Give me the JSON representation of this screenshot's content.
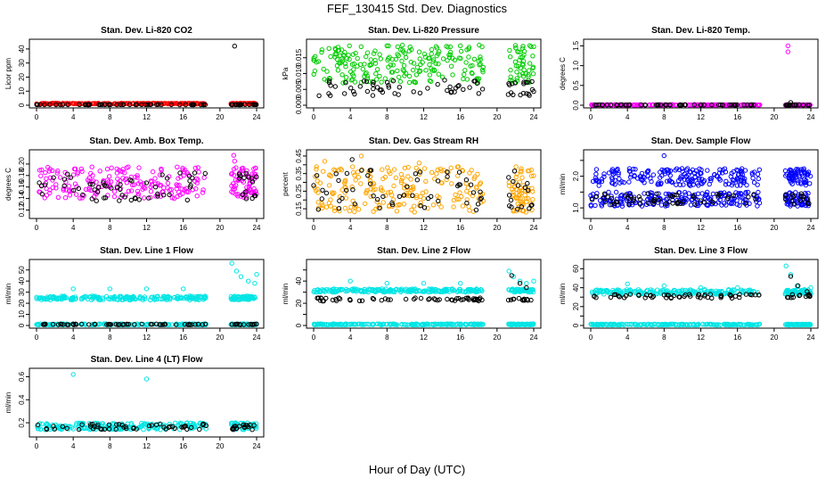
{
  "page": {
    "title": "FEF_130415  Std. Dev. Diagnostics",
    "xlabel": "Hour of Day (UTC)"
  },
  "colors": {
    "red": "#ff0000",
    "green": "#00cc00",
    "magenta": "#ff00ff",
    "orange": "#ffa500",
    "blue": "#0000ff",
    "cyan": "#00e5e5",
    "black": "#000000"
  },
  "chart_data": [
    {
      "type": "scatter",
      "title": "Stan. Dev. Li-820 CO2",
      "ylabel": "Licor ppm",
      "xlim": [
        0,
        24
      ],
      "ylim": [
        0,
        45
      ],
      "xticks": [
        "0",
        "4",
        "8",
        "12",
        "16",
        "20",
        "24"
      ],
      "yticks": [
        0,
        10,
        20,
        30,
        40
      ],
      "ytick_labels": [
        "0",
        "10",
        "20",
        "30",
        "40"
      ],
      "gaps": [
        [
          18.5,
          21.2
        ]
      ],
      "series": [
        {
          "name": "primary",
          "color": "#ff0000",
          "base": 0.9,
          "spread": 0.5,
          "seed": 11,
          "spikes": [
            [
              21.3,
              0.4
            ]
          ]
        },
        {
          "name": "secondary",
          "color": "#000000",
          "base": 0.3,
          "spread": 0.2,
          "seed": 12,
          "spikes": [
            [
              21.6,
              42
            ]
          ]
        }
      ]
    },
    {
      "type": "scatter",
      "title": "Stan. Dev. Li-820 Pressure",
      "ylabel": "kPa",
      "xlim": [
        0,
        24
      ],
      "ylim": [
        0,
        0.02
      ],
      "xticks": [
        "0",
        "4",
        "8",
        "12",
        "16",
        "20",
        "24"
      ],
      "yticks": [
        0,
        0.005,
        0.01,
        0.015
      ],
      "ytick_labels": [
        "0.000",
        "0.005",
        "0.010",
        "0.015"
      ],
      "gaps": [
        [
          18.5,
          21.2
        ]
      ],
      "series": [
        {
          "name": "primary",
          "color": "#00cc00",
          "base": 0.007,
          "spread": 0.012,
          "seed": 21,
          "spikes": [
            [
              8,
              0.0188
            ],
            [
              16,
              0.0188
            ],
            [
              24,
              0.0185
            ]
          ]
        },
        {
          "name": "secondary",
          "color": "#000000",
          "base": 0.003,
          "spread": 0.005,
          "seed": 22,
          "spikes": []
        }
      ]
    },
    {
      "type": "scatter",
      "title": "Stan. Dev. Li-820 Temp.",
      "ylabel": "degrees C",
      "xlim": [
        0,
        24
      ],
      "ylim": [
        0,
        1.6
      ],
      "xticks": [
        "0",
        "4",
        "8",
        "12",
        "16",
        "20",
        "24"
      ],
      "yticks": [
        0,
        0.5,
        1,
        1.5
      ],
      "ytick_labels": [
        "0.0",
        "0.5",
        "1.0",
        "1.5"
      ],
      "gaps": [
        [
          18.5,
          21.2
        ]
      ],
      "series": [
        {
          "name": "primary",
          "color": "#ff00ff",
          "base": 0.004,
          "spread": 0.008,
          "seed": 31,
          "spikes": [
            [
              21.5,
              1.5
            ],
            [
              21.5,
              1.35
            ]
          ]
        },
        {
          "name": "secondary",
          "color": "#000000",
          "base": 0.004,
          "spread": 0.008,
          "seed": 32,
          "spikes": [
            [
              21.8,
              0.07
            ]
          ]
        }
      ]
    },
    {
      "type": "scatter",
      "title": "Stan. Dev. Amb. Box Temp.",
      "ylabel": "degrees C",
      "xlim": [
        0,
        24
      ],
      "ylim": [
        0.11,
        0.22
      ],
      "xticks": [
        "0",
        "4",
        "8",
        "12",
        "16",
        "20",
        "24"
      ],
      "yticks": [
        0.12,
        0.14,
        0.16,
        0.18,
        0.2
      ],
      "ytick_labels": [
        "0.12",
        "0.14",
        "0.16",
        "0.18",
        "0.20"
      ],
      "gaps": [
        [
          18.5,
          21.2
        ]
      ],
      "series": [
        {
          "name": "primary",
          "color": "#ff00ff",
          "base": 0.14,
          "spread": 0.055,
          "seed": 41,
          "spikes": [
            [
              21.5,
              0.215
            ],
            [
              21.6,
              0.205
            ]
          ]
        },
        {
          "name": "secondary",
          "color": "#000000",
          "base": 0.135,
          "spread": 0.05,
          "seed": 42,
          "spikes": []
        }
      ]
    },
    {
      "type": "scatter",
      "title": "Stan. Dev. Gas Stream RH",
      "ylabel": "percent",
      "xlim": [
        0,
        24
      ],
      "ylim": [
        0.11,
        0.47
      ],
      "xticks": [
        "0",
        "4",
        "8",
        "12",
        "16",
        "20",
        "24"
      ],
      "yticks": [
        0.15,
        0.2,
        0.25,
        0.3,
        0.35,
        0.4,
        0.45
      ],
      "ytick_labels": [
        "0.15",
        "",
        "0.25",
        "",
        "0.35",
        "",
        "0.45"
      ],
      "gaps": [
        [
          18.5,
          21.2
        ]
      ],
      "series": [
        {
          "name": "primary",
          "color": "#ffa500",
          "base": 0.13,
          "spread": 0.26,
          "seed": 51,
          "spikes": [
            [
              5.2,
              0.45
            ],
            [
              1.2,
              0.42
            ],
            [
              11.5,
              0.41
            ]
          ]
        },
        {
          "name": "secondary",
          "color": "#000000",
          "base": 0.14,
          "spread": 0.23,
          "seed": 52,
          "spikes": [
            [
              4.2,
              0.43
            ]
          ]
        }
      ]
    },
    {
      "type": "scatter",
      "title": "Stan. Dev. Sample Flow",
      "ylabel": "ml/min",
      "xlim": [
        0,
        24
      ],
      "ylim": [
        0.75,
        2.75
      ],
      "xticks": [
        "0",
        "4",
        "8",
        "12",
        "16",
        "20",
        "24"
      ],
      "yticks": [
        1,
        1.5,
        2,
        2.5
      ],
      "ytick_labels": [
        "1.0",
        "",
        "2.0",
        ""
      ],
      "gaps": [
        [
          18.5,
          21.2
        ]
      ],
      "series": [
        {
          "name": "primary-upper",
          "color": "#0000ff",
          "base": 1.7,
          "spread": 0.55,
          "seed": 61,
          "spikes": [
            [
              8,
              2.65
            ]
          ]
        },
        {
          "name": "primary-lower",
          "color": "#0000ff",
          "base": 1.05,
          "spread": 0.45,
          "seed": 62,
          "spikes": []
        },
        {
          "name": "secondary",
          "color": "#000000",
          "base": 1.1,
          "spread": 0.35,
          "seed": 63,
          "spikes": []
        }
      ]
    },
    {
      "type": "scatter",
      "title": "Stan. Dev. Line 1 Flow",
      "ylabel": "ml/min",
      "xlim": [
        0,
        24
      ],
      "ylim": [
        0,
        57
      ],
      "xticks": [
        "0",
        "4",
        "8",
        "12",
        "16",
        "20",
        "24"
      ],
      "yticks": [
        0,
        10,
        20,
        30,
        40,
        50
      ],
      "ytick_labels": [
        "0",
        "10",
        "20",
        "30",
        "40",
        "50"
      ],
      "gaps": [
        [
          18.5,
          21.2
        ]
      ],
      "series": [
        {
          "name": "primary",
          "color": "#00e5e5",
          "base": 23,
          "spread": 3.5,
          "seed": 71,
          "spikes": [
            [
              4,
              33
            ],
            [
              8,
              33
            ],
            [
              12,
              33
            ],
            [
              16,
              33
            ],
            [
              21.3,
              56
            ],
            [
              21.8,
              49
            ],
            [
              22.3,
              44
            ],
            [
              23.1,
              40
            ],
            [
              23.8,
              38
            ],
            [
              24,
              46
            ]
          ]
        },
        {
          "name": "baseline",
          "color": "#00e5e5",
          "base": 0.5,
          "spread": 1,
          "seed": 72,
          "spikes": []
        },
        {
          "name": "secondary",
          "color": "#000000",
          "base": 0.6,
          "spread": 0.8,
          "seed": 73,
          "spikes": []
        }
      ]
    },
    {
      "type": "scatter",
      "title": "Stan. Dev. Line 2 Flow",
      "ylabel": "ml/min",
      "xlim": [
        0,
        24
      ],
      "ylim": [
        0,
        57
      ],
      "xticks": [
        "0",
        "4",
        "8",
        "12",
        "16",
        "20",
        "24"
      ],
      "yticks": [
        0,
        10,
        20,
        30,
        40,
        50
      ],
      "ytick_labels": [
        "0",
        "",
        "20",
        "",
        "40",
        ""
      ],
      "gaps": [
        [
          18.5,
          21.2
        ]
      ],
      "series": [
        {
          "name": "primary",
          "color": "#00e5e5",
          "base": 30,
          "spread": 3,
          "seed": 81,
          "spikes": [
            [
              4,
              40
            ],
            [
              8,
              38
            ],
            [
              12,
              38
            ],
            [
              16,
              38
            ],
            [
              21.3,
              49
            ],
            [
              21.8,
              44
            ],
            [
              22.5,
              40
            ],
            [
              23.2,
              38
            ],
            [
              24,
              40
            ]
          ]
        },
        {
          "name": "baseline",
          "color": "#00e5e5",
          "base": 0.5,
          "spread": 1,
          "seed": 82,
          "spikes": []
        },
        {
          "name": "secondary",
          "color": "#000000",
          "base": 22,
          "spread": 3,
          "seed": 83,
          "spikes": [
            [
              21.6,
              45
            ],
            [
              22.5,
              38
            ],
            [
              23.2,
              34
            ]
          ]
        }
      ]
    },
    {
      "type": "scatter",
      "title": "Stan. Dev. Line 3 Flow",
      "ylabel": "ml/min",
      "xlim": [
        0,
        24
      ],
      "ylim": [
        0,
        67
      ],
      "xticks": [
        "0",
        "4",
        "8",
        "12",
        "16",
        "20",
        "24"
      ],
      "yticks": [
        0,
        10,
        20,
        30,
        40,
        50,
        60
      ],
      "ytick_labels": [
        "0",
        "",
        "20",
        "",
        "40",
        "",
        "60"
      ],
      "gaps": [
        [
          18.5,
          21.2
        ]
      ],
      "series": [
        {
          "name": "primary",
          "color": "#00e5e5",
          "base": 33,
          "spread": 5,
          "seed": 91,
          "spikes": [
            [
              4,
              44
            ],
            [
              8,
              42
            ],
            [
              12,
              40
            ],
            [
              16,
              40
            ],
            [
              21.3,
              63
            ],
            [
              21.8,
              54
            ],
            [
              22.5,
              42
            ],
            [
              23.3,
              38
            ],
            [
              24,
              40
            ]
          ]
        },
        {
          "name": "baseline",
          "color": "#00e5e5",
          "base": 0.5,
          "spread": 1,
          "seed": 92,
          "spikes": []
        },
        {
          "name": "secondary",
          "color": "#000000",
          "base": 29,
          "spread": 4,
          "seed": 93,
          "spikes": [
            [
              21.8,
              52
            ],
            [
              22.6,
              42
            ],
            [
              23.6,
              36
            ]
          ]
        }
      ]
    },
    {
      "type": "scatter",
      "title": "Stan. Dev. Line 4 (LT) Flow",
      "ylabel": "ml/min",
      "xlim": [
        0,
        24
      ],
      "ylim": [
        0.1,
        0.65
      ],
      "xticks": [
        "0",
        "4",
        "8",
        "12",
        "16",
        "20",
        "24"
      ],
      "yticks": [
        0.2,
        0.4,
        0.6
      ],
      "ytick_labels": [
        "0.2",
        "0.4",
        "0.6"
      ],
      "gaps": [
        [
          18.5,
          21.2
        ]
      ],
      "series": [
        {
          "name": "primary",
          "color": "#00e5e5",
          "base": 0.14,
          "spread": 0.06,
          "seed": 101,
          "spikes": [
            [
              4,
              0.62
            ],
            [
              12,
              0.58
            ]
          ]
        },
        {
          "name": "secondary",
          "color": "#000000",
          "base": 0.14,
          "spread": 0.05,
          "seed": 102,
          "spikes": []
        }
      ]
    }
  ]
}
